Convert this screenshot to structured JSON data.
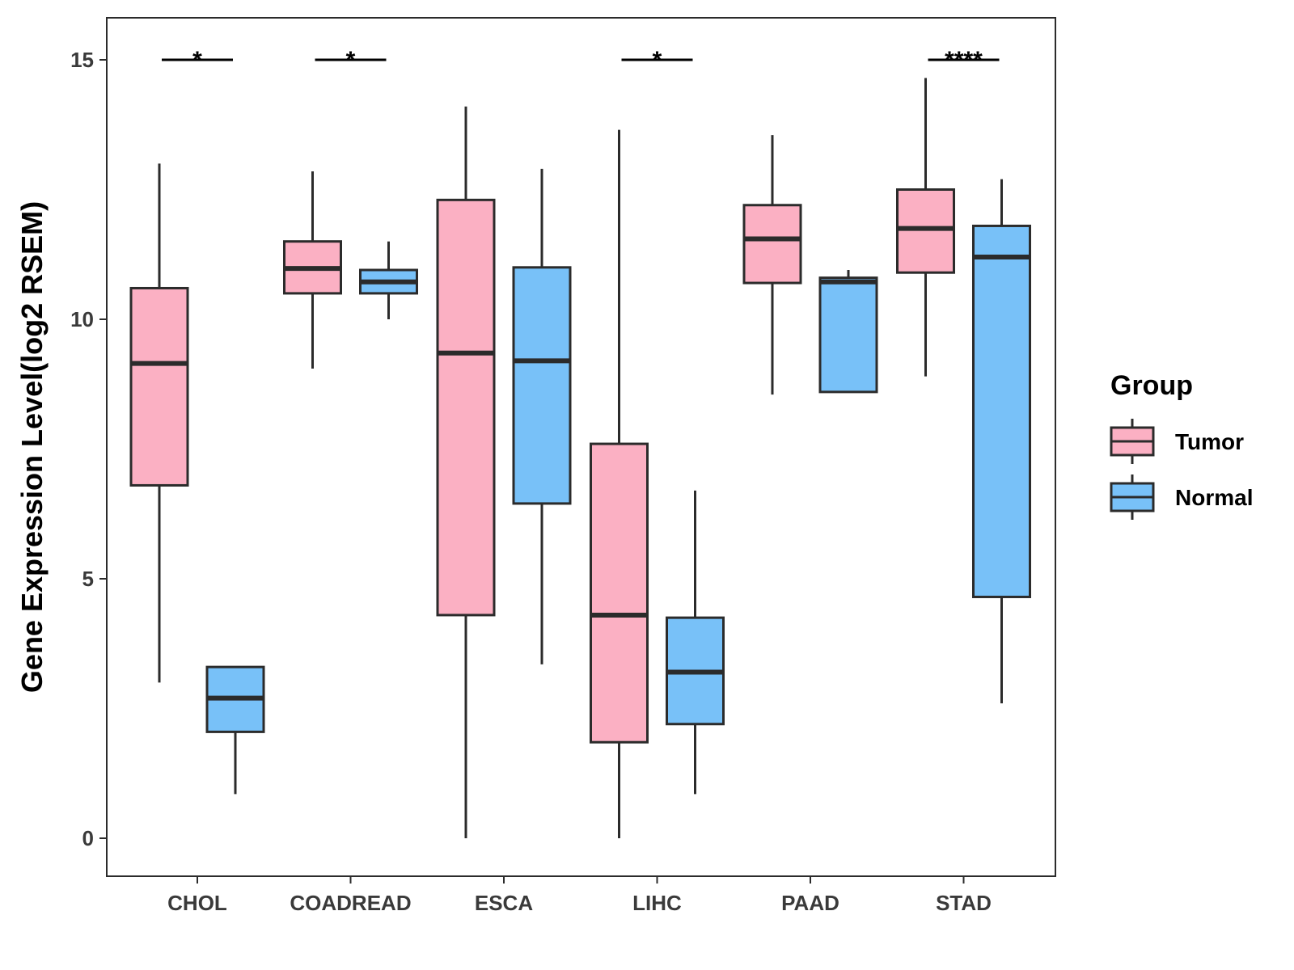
{
  "chart_data": {
    "type": "boxplot",
    "title": "",
    "xlabel": "",
    "ylabel": "Gene Expression Level(log2 RSEM)",
    "ylim": [
      -0.7,
      15.8
    ],
    "yticks": [
      0,
      5,
      10,
      15
    ],
    "grid": false,
    "legend_position": "right",
    "categories": [
      "CHOL",
      "COADREAD",
      "ESCA",
      "LIHC",
      "PAAD",
      "STAD"
    ],
    "legend": {
      "title": "Group",
      "labels": [
        "Tumor",
        "Normal"
      ]
    },
    "colors": {
      "Tumor": "#fbb0c3",
      "Normal": "#78c1f8",
      "stroke": "#2b2b2b"
    },
    "series": [
      {
        "name": "Tumor",
        "boxes": [
          {
            "min": 3.0,
            "q1": 6.8,
            "median": 9.15,
            "q3": 10.6,
            "max": 13.0
          },
          {
            "min": 9.05,
            "q1": 10.5,
            "median": 10.98,
            "q3": 11.5,
            "max": 12.85
          },
          {
            "min": 0.0,
            "q1": 4.3,
            "median": 9.35,
            "q3": 12.3,
            "max": 14.1
          },
          {
            "min": 0.0,
            "q1": 1.85,
            "median": 4.3,
            "q3": 7.6,
            "max": 13.65
          },
          {
            "min": 8.55,
            "q1": 10.7,
            "median": 11.55,
            "q3": 12.2,
            "max": 13.55
          },
          {
            "min": 8.9,
            "q1": 10.9,
            "median": 11.75,
            "q3": 12.5,
            "max": 14.65
          }
        ]
      },
      {
        "name": "Normal",
        "boxes": [
          {
            "min": 0.85,
            "q1": 2.05,
            "median": 2.7,
            "q3": 3.3,
            "max": 3.3
          },
          {
            "min": 10.0,
            "q1": 10.5,
            "median": 10.72,
            "q3": 10.95,
            "max": 11.5
          },
          {
            "min": 3.35,
            "q1": 6.45,
            "median": 9.2,
            "q3": 11.0,
            "max": 12.9
          },
          {
            "min": 0.85,
            "q1": 2.2,
            "median": 3.2,
            "q3": 4.25,
            "max": 6.7
          },
          {
            "min": 8.6,
            "q1": 8.6,
            "median": 10.72,
            "q3": 10.8,
            "max": 10.95
          },
          {
            "min": 2.6,
            "q1": 4.65,
            "median": 11.2,
            "q3": 11.8,
            "max": 12.7
          }
        ]
      }
    ],
    "significance": [
      {
        "category": "CHOL",
        "label": "*",
        "y": 15.0
      },
      {
        "category": "COADREAD",
        "label": "*",
        "y": 15.0
      },
      {
        "category": "LIHC",
        "label": "*",
        "y": 15.0
      },
      {
        "category": "STAD",
        "label": "****",
        "y": 15.0
      }
    ]
  }
}
